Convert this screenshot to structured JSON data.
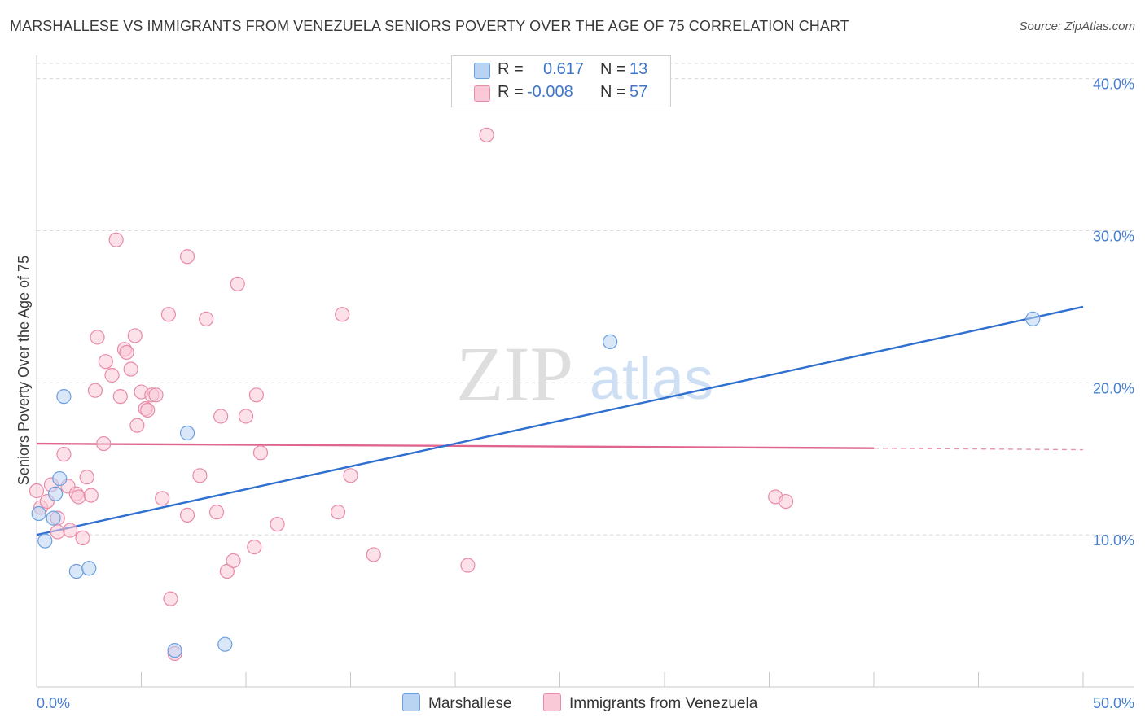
{
  "header": {
    "title": "MARSHALLESE VS IMMIGRANTS FROM VENEZUELA SENIORS POVERTY OVER THE AGE OF 75 CORRELATION CHART",
    "source": "Source: ZipAtlas.com"
  },
  "watermark": {
    "zip": "ZIP",
    "atlas": "atlas"
  },
  "legend": {
    "rows": [
      {
        "r_label": "R =",
        "r_value": "0.617",
        "n_label": "N =",
        "n_value": "13",
        "color": "#a9c8f0"
      },
      {
        "r_label": "R =",
        "r_value": "-0.008",
        "n_label": "N =",
        "n_value": "57",
        "color": "#f7b9cc"
      }
    ]
  },
  "bottom_legend": {
    "series_a": "Marshallese",
    "series_b": "Immigrants from Venezuela"
  },
  "chart_data": {
    "type": "scatter",
    "title": "MARSHALLESE VS IMMIGRANTS FROM VENEZUELA SENIORS POVERTY OVER THE AGE OF 75 CORRELATION CHART",
    "xlabel": "",
    "ylabel": "Seniors Poverty Over the Age of 75",
    "xlim": [
      0,
      50
    ],
    "ylim": [
      0,
      41
    ],
    "x_tick_labels": [
      "0.0%",
      "50.0%"
    ],
    "y_ticks": [
      10,
      20,
      30,
      40
    ],
    "y_tick_labels": [
      "10.0%",
      "20.0%",
      "30.0%",
      "40.0%"
    ],
    "grid": true,
    "series": [
      {
        "name": "Marshallese",
        "color": "#6a9fe0",
        "fill": "#b9d3f3",
        "line_color": "#2f6fd0",
        "points": [
          [
            0.1,
            11.4
          ],
          [
            0.4,
            9.6
          ],
          [
            0.8,
            11.1
          ],
          [
            0.9,
            12.7
          ],
          [
            1.1,
            13.7
          ],
          [
            1.3,
            19.1
          ],
          [
            1.9,
            7.6
          ],
          [
            2.5,
            7.8
          ],
          [
            6.6,
            2.4
          ],
          [
            7.2,
            16.7
          ],
          [
            9.0,
            2.8
          ],
          [
            27.4,
            22.7
          ],
          [
            47.6,
            24.2
          ]
        ],
        "trend": {
          "x": [
            0,
            50
          ],
          "y": [
            10.0,
            25.0
          ]
        }
      },
      {
        "name": "Immigrants from Venezuela",
        "color": "#e98aa8",
        "fill": "#f9c9d7",
        "line_color": "#e0668f",
        "points": [
          [
            0.0,
            12.9
          ],
          [
            0.2,
            11.8
          ],
          [
            0.5,
            12.2
          ],
          [
            0.7,
            13.3
          ],
          [
            1.0,
            11.1
          ],
          [
            1.0,
            10.2
          ],
          [
            1.3,
            15.3
          ],
          [
            1.5,
            13.2
          ],
          [
            1.6,
            10.3
          ],
          [
            1.9,
            12.7
          ],
          [
            2.0,
            12.5
          ],
          [
            2.2,
            9.8
          ],
          [
            2.4,
            13.8
          ],
          [
            2.6,
            12.6
          ],
          [
            2.8,
            19.5
          ],
          [
            2.9,
            23.0
          ],
          [
            3.2,
            16.0
          ],
          [
            3.3,
            21.4
          ],
          [
            3.6,
            20.5
          ],
          [
            3.8,
            29.4
          ],
          [
            4.0,
            19.1
          ],
          [
            4.2,
            22.2
          ],
          [
            4.3,
            22.0
          ],
          [
            4.5,
            20.9
          ],
          [
            4.7,
            23.1
          ],
          [
            4.8,
            17.2
          ],
          [
            5.0,
            19.4
          ],
          [
            5.2,
            18.3
          ],
          [
            5.3,
            18.2
          ],
          [
            5.5,
            19.2
          ],
          [
            5.7,
            19.2
          ],
          [
            6.0,
            12.4
          ],
          [
            6.3,
            24.5
          ],
          [
            6.4,
            5.8
          ],
          [
            6.6,
            2.2
          ],
          [
            7.2,
            11.3
          ],
          [
            7.2,
            28.3
          ],
          [
            7.8,
            13.9
          ],
          [
            8.1,
            24.2
          ],
          [
            8.6,
            11.5
          ],
          [
            8.8,
            17.8
          ],
          [
            9.1,
            7.6
          ],
          [
            9.4,
            8.3
          ],
          [
            9.6,
            26.5
          ],
          [
            10.0,
            17.8
          ],
          [
            10.4,
            9.2
          ],
          [
            10.5,
            19.2
          ],
          [
            10.7,
            15.4
          ],
          [
            11.5,
            10.7
          ],
          [
            14.4,
            11.5
          ],
          [
            14.6,
            24.5
          ],
          [
            15.0,
            13.9
          ],
          [
            16.1,
            8.7
          ],
          [
            20.6,
            8.0
          ],
          [
            21.5,
            36.3
          ],
          [
            35.3,
            12.5
          ],
          [
            35.8,
            12.2
          ]
        ],
        "trend": {
          "x": [
            0,
            40
          ],
          "y": [
            16.0,
            15.7
          ]
        },
        "trend_dashed": {
          "x": [
            40,
            50
          ],
          "y": [
            15.7,
            15.6
          ]
        }
      }
    ]
  }
}
